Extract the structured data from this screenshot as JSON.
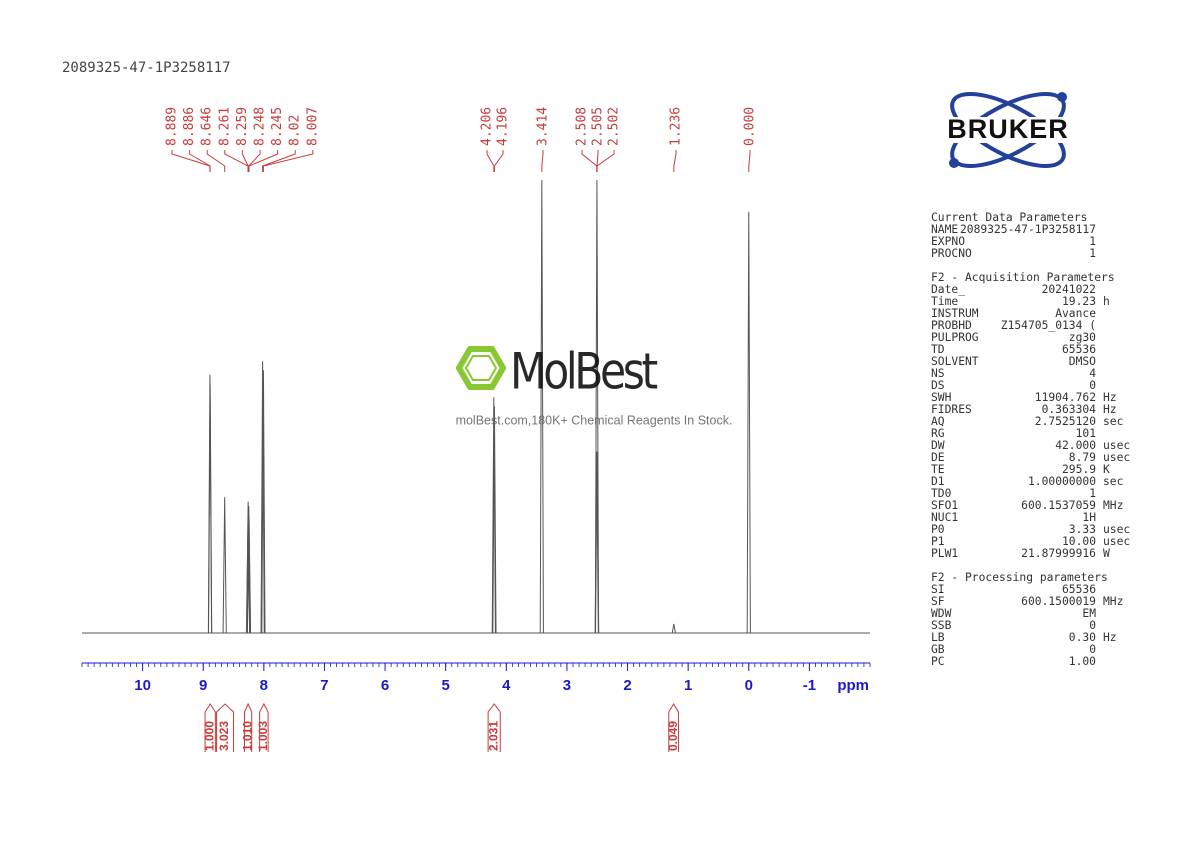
{
  "chart_data": {
    "type": "spectrum",
    "title": "2089325-47-1P3258117",
    "xlabel": "ppm",
    "xlim": [
      11,
      -2
    ],
    "xticks": [
      10,
      9,
      8,
      7,
      6,
      5,
      4,
      3,
      2,
      1,
      0,
      -1
    ],
    "ylim": [
      0,
      100
    ],
    "color": "#555555",
    "label_color": "#c83c3c",
    "axis_color": "#1a1acc",
    "peaks": {
      "x": [
        8.889,
        8.886,
        8.646,
        8.261,
        8.259,
        8.248,
        8.245,
        8.02,
        8.007,
        4.206,
        4.196,
        3.414,
        2.508,
        2.505,
        2.502,
        1.236,
        {
          "value": 0,
          "label": "0.000"
        }
      ],
      "values": [
        57,
        55,
        30,
        25,
        29,
        28,
        26,
        60,
        58,
        52,
        50,
        100,
        40,
        100,
        40,
        2,
        93
      ]
    },
    "integrals": [
      {
        "value": 1,
        "label": "1.000"
      },
      {
        "value": 3.023,
        "label": "3.023"
      },
      {
        "value": 1.01,
        "label": "1.010"
      },
      {
        "value": 1.003,
        "label": "1.003"
      },
      {
        "value": 2.031,
        "label": "2.031"
      },
      {
        "value": 0.049,
        "label": "0.049"
      }
    ],
    "integral_ranges": [
      [
        8.97,
        8.8
      ],
      [
        8.78,
        8.5
      ],
      [
        8.32,
        8.2
      ],
      [
        8.07,
        7.93
      ],
      [
        4.3,
        4.1
      ],
      [
        1.32,
        1.16
      ]
    ]
  },
  "logo": "BRUKER",
  "watermark": {
    "name": "MolBest",
    "tagline": "molBest.com,180K+ Chemical Reagents In Stock."
  },
  "parameters": [
    {
      "title": "Current Data Parameters",
      "rows": [
        [
          "NAME",
          "2089325-47-1P3258117"
        ],
        [
          "EXPNO",
          "1"
        ],
        [
          "PROCNO",
          "1"
        ]
      ]
    },
    {
      "title": "F2 - Acquisition Parameters",
      "rows": [
        [
          "Date_",
          "20241022"
        ],
        [
          "Time",
          "19.23",
          "h"
        ],
        [
          "INSTRUM",
          "Avance"
        ],
        [
          "PROBHD",
          "Z154705_0134 ("
        ],
        [
          "PULPROG",
          "zg30"
        ],
        [
          "TD",
          "65536"
        ],
        [
          "SOLVENT",
          "DMSO"
        ],
        [
          "NS",
          "4"
        ],
        [
          "DS",
          "0"
        ],
        [
          "SWH",
          "11904.762",
          "Hz"
        ],
        [
          "FIDRES",
          "0.363304",
          "Hz"
        ],
        [
          "AQ",
          "2.7525120",
          "sec"
        ],
        [
          "RG",
          "101"
        ],
        [
          "DW",
          "42.000",
          "usec"
        ],
        [
          "DE",
          "8.79",
          "usec"
        ],
        [
          "TE",
          "295.9",
          "K"
        ],
        [
          "D1",
          "1.00000000",
          "sec"
        ],
        [
          "TD0",
          "1"
        ],
        [
          "SFO1",
          "600.1537059",
          "MHz"
        ],
        [
          "NUC1",
          "1H"
        ],
        [
          "P0",
          "3.33",
          "usec"
        ],
        [
          "P1",
          "10.00",
          "usec"
        ],
        [
          "PLW1",
          "21.87999916",
          "W"
        ]
      ]
    },
    {
      "title": "F2 - Processing parameters",
      "rows": [
        [
          "SI",
          "65536"
        ],
        [
          "SF",
          "600.1500019",
          "MHz"
        ],
        [
          "WDW",
          "EM"
        ],
        [
          "SSB",
          "0"
        ],
        [
          "LB",
          "0.30",
          "Hz"
        ],
        [
          "GB",
          "0"
        ],
        [
          "PC",
          "1.00"
        ]
      ]
    }
  ]
}
